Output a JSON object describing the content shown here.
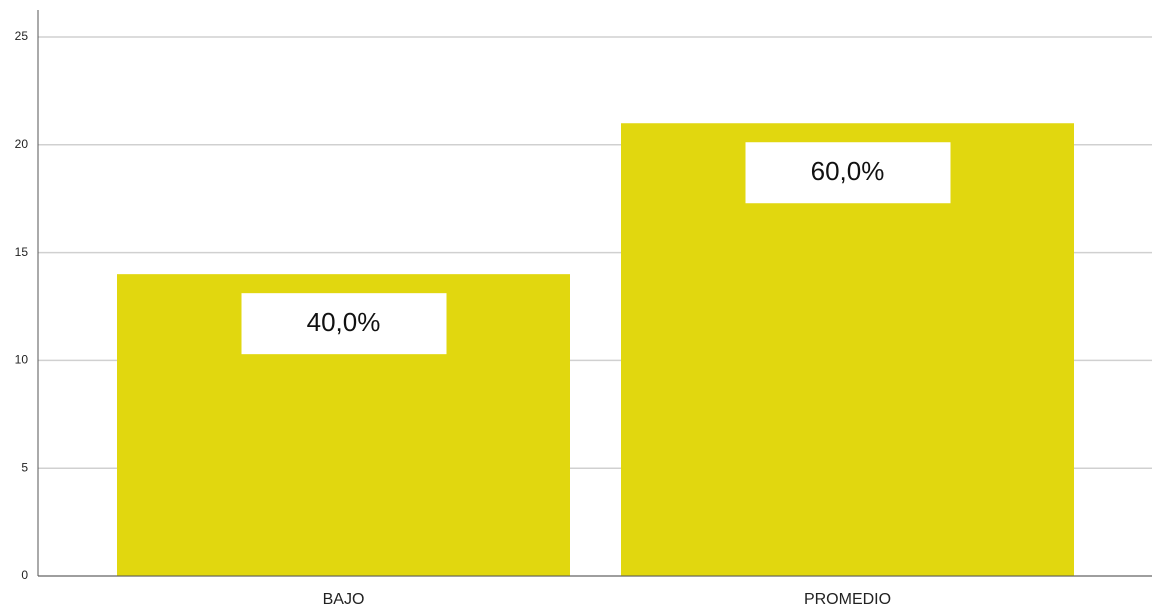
{
  "chart_data": {
    "type": "bar",
    "categories": [
      "BAJO",
      "PROMEDIO"
    ],
    "values": [
      14,
      21
    ],
    "annotations": [
      "40,0%",
      "60,0%"
    ],
    "color": "#e1d70f",
    "ylim": [
      0,
      25
    ],
    "yticks": [
      0,
      5,
      10,
      15,
      20,
      25
    ],
    "grid": true
  }
}
